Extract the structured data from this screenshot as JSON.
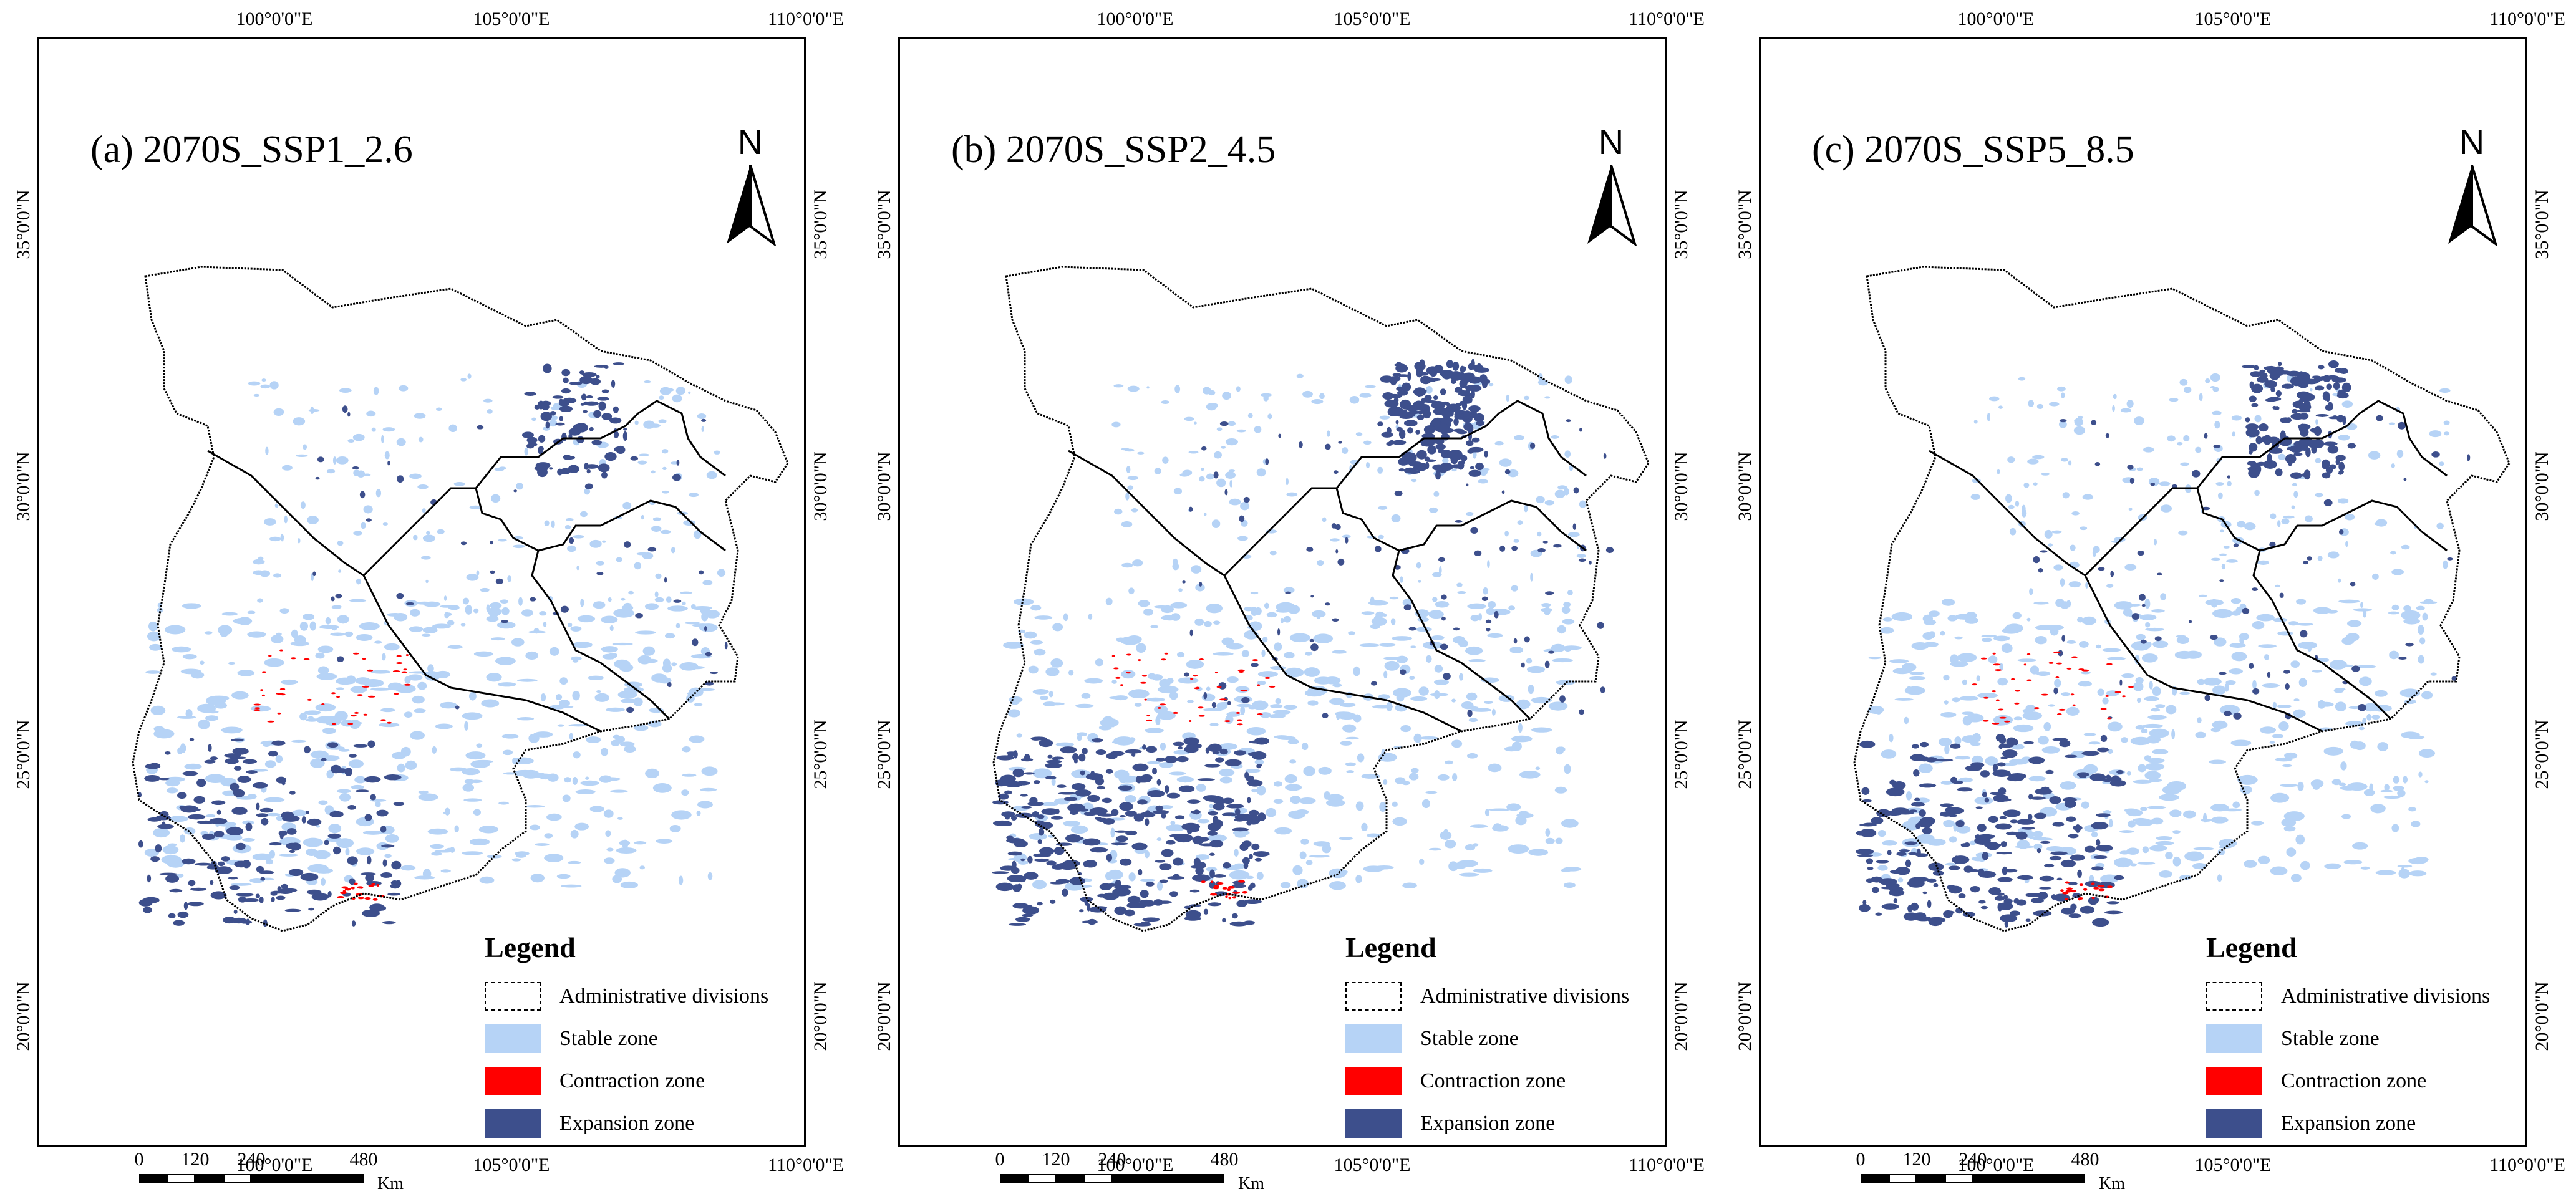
{
  "colors": {
    "stable": "#b6d3f6",
    "contraction": "#ff0000",
    "expansion": "#3d4f8c",
    "boundary": "#000000"
  },
  "axes": {
    "lon_ticks": [
      "100°0'0\"E",
      "105°0'0\"E",
      "110°0'0\"E"
    ],
    "lat_ticks": [
      "35°0'0\"N",
      "30°0'0\"N",
      "25°0'0\"N",
      "20°0'0\"N"
    ]
  },
  "legend": {
    "title": "Legend",
    "items": [
      {
        "label": "Administrative divisions",
        "kind": "boundary"
      },
      {
        "label": "Stable zone",
        "kind": "stable"
      },
      {
        "label": "Contraction zone",
        "kind": "contraction"
      },
      {
        "label": "Expansion zone",
        "kind": "expansion"
      }
    ]
  },
  "scalebar": {
    "labels": [
      "0",
      "120",
      "240",
      "480"
    ],
    "unit": "Km"
  },
  "north_arrow": "N",
  "panels": [
    {
      "id": "a",
      "title": "(a) 2070S_SSP1_2.6",
      "expansion_level": 0.35
    },
    {
      "id": "b",
      "title": "(b) 2070S_SSP2_4.5",
      "expansion_level": 0.85
    },
    {
      "id": "c",
      "title": "(c) 2070S_SSP5_8.5",
      "expansion_level": 0.6
    }
  ]
}
